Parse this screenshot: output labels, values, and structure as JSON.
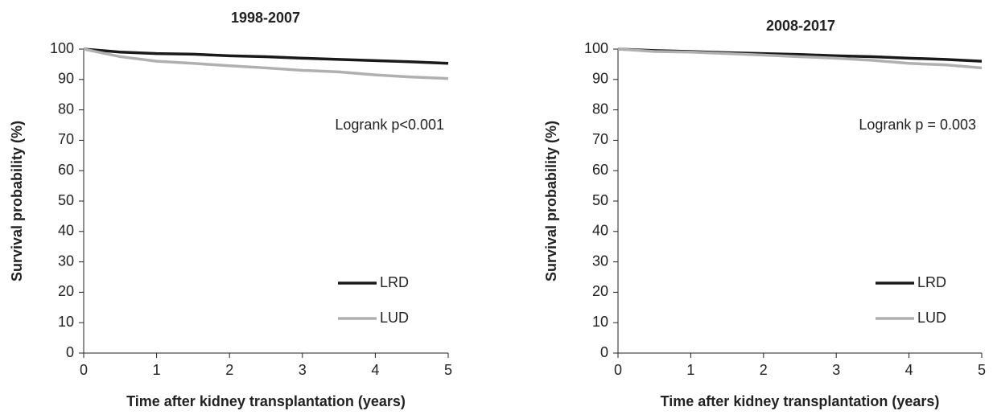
{
  "chart_data": [
    {
      "type": "line",
      "title": "1998-2007",
      "x_label": "Time after kidney transplantation (years)",
      "y_label": "Survival probability (%)",
      "annotation": "Logrank p<0.001",
      "x": [
        0,
        0.5,
        1,
        1.5,
        2,
        2.5,
        3,
        3.5,
        4,
        4.5,
        5
      ],
      "series": [
        {
          "name": "LRD",
          "color": "#1a1a1a",
          "values": [
            100,
            99,
            98.5,
            98.3,
            97.8,
            97.5,
            97,
            96.6,
            96.2,
            95.8,
            95.3
          ]
        },
        {
          "name": "LUD",
          "color": "#b0b0b0",
          "values": [
            100,
            97.5,
            96,
            95.3,
            94.5,
            93.8,
            93,
            92.5,
            91.5,
            90.8,
            90.3
          ]
        }
      ],
      "xlim": [
        0,
        5
      ],
      "xticks": [
        0,
        1,
        2,
        3,
        4,
        5
      ],
      "ylim": [
        0,
        100
      ],
      "yticks": [
        0,
        10,
        20,
        30,
        40,
        50,
        60,
        70,
        80,
        90,
        100
      ]
    },
    {
      "type": "line",
      "title": "2008-2017",
      "x_label": "Time after kidney transplantation (years)",
      "y_label": "Survival probability (%)",
      "annotation": "Logrank p = 0.003",
      "x": [
        0,
        0.5,
        1,
        1.5,
        2,
        2.5,
        3,
        3.5,
        4,
        4.5,
        5
      ],
      "series": [
        {
          "name": "LRD",
          "color": "#1a1a1a",
          "values": [
            100,
            99.5,
            99.2,
            98.8,
            98.5,
            98.2,
            97.8,
            97.5,
            97,
            96.6,
            96
          ]
        },
        {
          "name": "LUD",
          "color": "#b0b0b0",
          "values": [
            100,
            99.2,
            99,
            98.5,
            98,
            97.5,
            97,
            96.3,
            95.3,
            94.8,
            93.8
          ]
        }
      ],
      "xlim": [
        0,
        5
      ],
      "xticks": [
        0,
        1,
        2,
        3,
        4,
        5
      ],
      "ylim": [
        0,
        100
      ],
      "yticks": [
        0,
        10,
        20,
        30,
        40,
        50,
        60,
        70,
        80,
        90,
        100
      ]
    }
  ]
}
